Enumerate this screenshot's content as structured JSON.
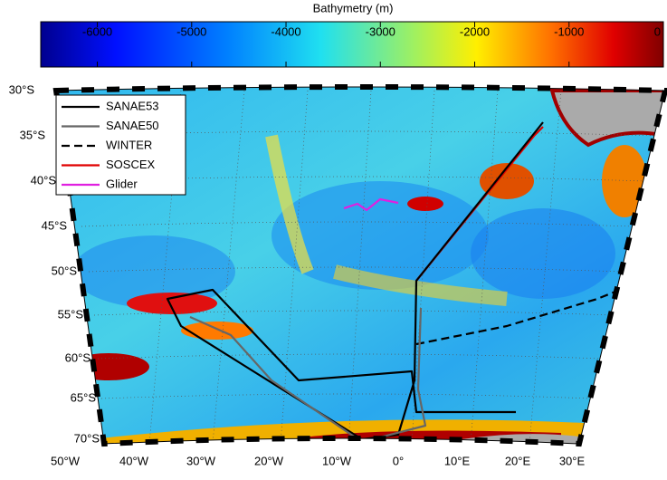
{
  "colorbar": {
    "title": "Bathymetry (m)",
    "clim": [
      -6600,
      0
    ],
    "ticks": [
      -6000,
      -5000,
      -4000,
      -3000,
      -2000,
      -1000,
      0
    ]
  },
  "map": {
    "lat_labels": [
      "30°S",
      "35°S",
      "40°S",
      "45°S",
      "50°S",
      "55°S",
      "60°S",
      "65°S",
      "70°S"
    ],
    "lon_labels": [
      "50°W",
      "40°W",
      "30°W",
      "20°W",
      "10°W",
      "0°",
      "10°E",
      "20°E",
      "30°E"
    ]
  },
  "legend": [
    {
      "name": "SANAE53",
      "color": "#000000",
      "dash": false
    },
    {
      "name": "SANAE50",
      "color": "#666666",
      "dash": false
    },
    {
      "name": "WINTER",
      "color": "#000000",
      "dash": true
    },
    {
      "name": "SOSCEX",
      "color": "#e00000",
      "dash": false
    },
    {
      "name": "Glider",
      "color": "#e020e0",
      "dash": false
    }
  ]
}
